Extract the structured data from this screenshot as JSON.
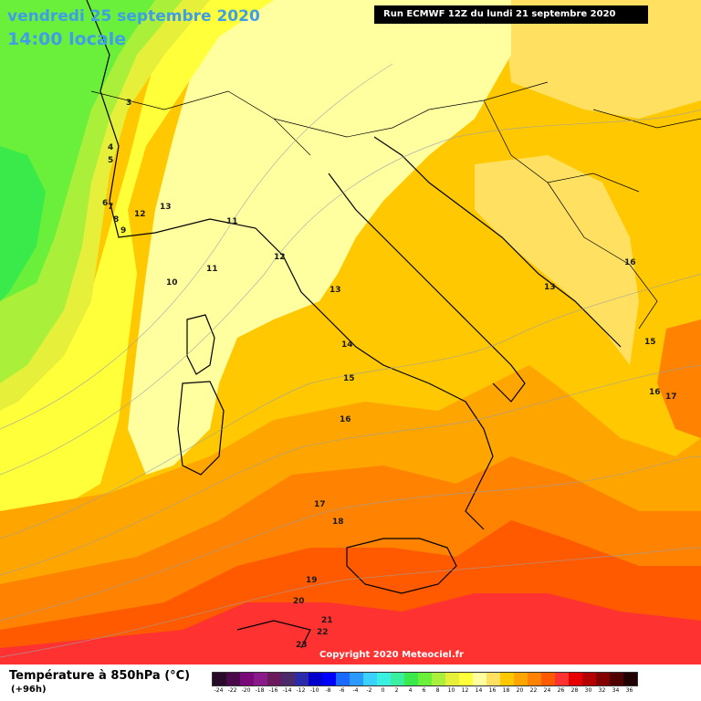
{
  "header": {
    "date": "vendredi 25 septembre 2020",
    "time": "14:00 locale",
    "run": "Run ECMWF 12Z du lundi 21 septembre 2020"
  },
  "copyright": "Copyright 2020 Meteociel.fr",
  "footer": {
    "variable": "Température à 850hPa (°C)",
    "lead": "(+96h)"
  },
  "legend": {
    "ticks": [
      "-24",
      "-22",
      "-20",
      "-18",
      "-16",
      "-14",
      "-12",
      "-10",
      "-8",
      "-6",
      "-4",
      "-2",
      "0",
      "2",
      "4",
      "6",
      "8",
      "10",
      "12",
      "14",
      "16",
      "18",
      "20",
      "22",
      "24",
      "26",
      "28",
      "30",
      "32",
      "34",
      "36"
    ],
    "colors": [
      "#2a0a2a",
      "#4a0a4a",
      "#7a0a7a",
      "#8a1a8a",
      "#6a1a5a",
      "#4a2a6a",
      "#2a2aaa",
      "#0000cc",
      "#0000ff",
      "#1a6aff",
      "#2a9aff",
      "#3ad0ff",
      "#3af0e0",
      "#3af0a0",
      "#3aea4a",
      "#6af03a",
      "#aaf03a",
      "#e6f03a",
      "#ffff3a",
      "#ffffa0",
      "#ffe060",
      "#ffc800",
      "#ffa500",
      "#ff8200",
      "#ff5a00",
      "#ff3232",
      "#e60000",
      "#b40000",
      "#820000",
      "#500000",
      "#200000"
    ]
  },
  "map": {
    "contour_labels": [
      "3",
      "4",
      "5",
      "6",
      "7",
      "8",
      "9",
      "10",
      "11",
      "11",
      "12",
      "12",
      "13",
      "13",
      "13",
      "14",
      "15",
      "15",
      "16",
      "16",
      "16",
      "17",
      "17",
      "18",
      "19",
      "20",
      "21",
      "22",
      "23"
    ]
  }
}
